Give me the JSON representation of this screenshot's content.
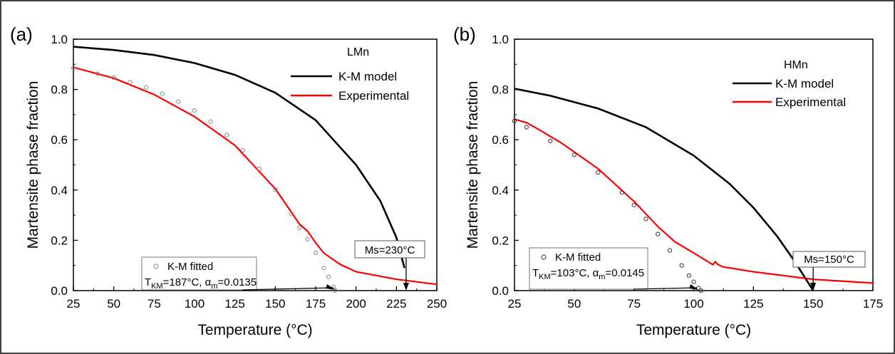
{
  "chart_data": [
    {
      "type": "line",
      "panel_label": "(a)",
      "xlabel": "Temperature (°C)",
      "ylabel": "Martensite phase fraction",
      "xlim": [
        25,
        250
      ],
      "ylim": [
        0.0,
        1.0
      ],
      "xticks": [
        "25",
        "50",
        "75",
        "100",
        "125",
        "150",
        "175",
        "200",
        "225",
        "250"
      ],
      "yticks": [
        "0.0",
        "0.2",
        "0.4",
        "0.6",
        "0.8",
        "1.0"
      ],
      "legend_title": "LMn",
      "legend_placement": "top-right",
      "series": [
        {
          "name": "K-M model",
          "color": "#000000",
          "style": "line",
          "x": [
            25,
            50,
            75,
            100,
            125,
            150,
            175,
            200,
            215,
            225,
            230
          ],
          "y": [
            0.97,
            0.957,
            0.937,
            0.905,
            0.858,
            0.787,
            0.678,
            0.5,
            0.357,
            0.211,
            0.09
          ]
        },
        {
          "name": "Experimental",
          "color": "#ff0000",
          "style": "line",
          "x": [
            25,
            50,
            75,
            100,
            125,
            150,
            165,
            170,
            172,
            175,
            180,
            190,
            200,
            225,
            250
          ],
          "y": [
            0.888,
            0.845,
            0.78,
            0.692,
            0.578,
            0.405,
            0.265,
            0.236,
            0.218,
            0.19,
            0.15,
            0.105,
            0.075,
            0.045,
            0.025
          ]
        },
        {
          "name": "K-M fitted",
          "color": "#888888",
          "style": "circles",
          "x": [
            25,
            40,
            50,
            60,
            70,
            80,
            90,
            100,
            110,
            120,
            130,
            140,
            150,
            160,
            165,
            170,
            175,
            180,
            183,
            186,
            187
          ],
          "y": [
            0.885,
            0.862,
            0.847,
            0.829,
            0.808,
            0.783,
            0.752,
            0.716,
            0.672,
            0.619,
            0.558,
            0.485,
            0.402,
            0.305,
            0.25,
            0.205,
            0.15,
            0.09,
            0.055,
            0.015,
            0.0
          ]
        }
      ],
      "annotation_fit_line1": "T",
      "annotation_fit_sub1": "KM",
      "annotation_fit_line2": "=187°C, α",
      "annotation_fit_sub2": "m",
      "annotation_fit_line3": "=0.0135",
      "ms_label": "Ms=230°C",
      "fit_arrow_x": 187,
      "ms_arrow_x": 231
    },
    {
      "type": "line",
      "panel_label": "(b)",
      "xlabel": "Temperature (°C)",
      "ylabel": "Martensite phase fraction",
      "xlim": [
        25,
        175
      ],
      "ylim": [
        0.0,
        1.0
      ],
      "xticks": [
        "25",
        "50",
        "75",
        "100",
        "125",
        "150",
        "175"
      ],
      "yticks": [
        "0.0",
        "0.2",
        "0.4",
        "0.6",
        "0.8",
        "1.0"
      ],
      "legend_title": "HMn",
      "legend_placement": "top-right",
      "series": [
        {
          "name": "K-M model",
          "color": "#000000",
          "style": "line",
          "x": [
            25,
            40,
            60,
            80,
            100,
            115,
            125,
            135,
            142,
            148,
            150
          ],
          "y": [
            0.803,
            0.775,
            0.724,
            0.65,
            0.537,
            0.425,
            0.33,
            0.215,
            0.12,
            0.03,
            0.0
          ]
        },
        {
          "name": "Experimental",
          "color": "#ff0000",
          "style": "line",
          "x": [
            25,
            30,
            35,
            45,
            60,
            75,
            85,
            92,
            100,
            106,
            108,
            109,
            110,
            112,
            125,
            150,
            175
          ],
          "y": [
            0.682,
            0.668,
            0.642,
            0.585,
            0.485,
            0.355,
            0.255,
            0.195,
            0.15,
            0.115,
            0.103,
            0.115,
            0.105,
            0.095,
            0.075,
            0.045,
            0.03
          ]
        },
        {
          "name": "K-M fitted",
          "color": "#333333",
          "style": "circles",
          "x": [
            25,
            30,
            40,
            50,
            60,
            70,
            75,
            80,
            85,
            90,
            95,
            98,
            100,
            102,
            103
          ],
          "y": [
            0.675,
            0.65,
            0.595,
            0.54,
            0.47,
            0.39,
            0.34,
            0.285,
            0.225,
            0.16,
            0.1,
            0.06,
            0.035,
            0.01,
            0.0
          ]
        }
      ],
      "annotation_fit_line1": "T",
      "annotation_fit_sub1": "KM",
      "annotation_fit_line2": "=103°C, α",
      "annotation_fit_sub2": "m",
      "annotation_fit_line3": "=0.0145",
      "ms_label": "Ms=150°C",
      "fit_arrow_x": 102,
      "ms_arrow_x": 150
    }
  ]
}
